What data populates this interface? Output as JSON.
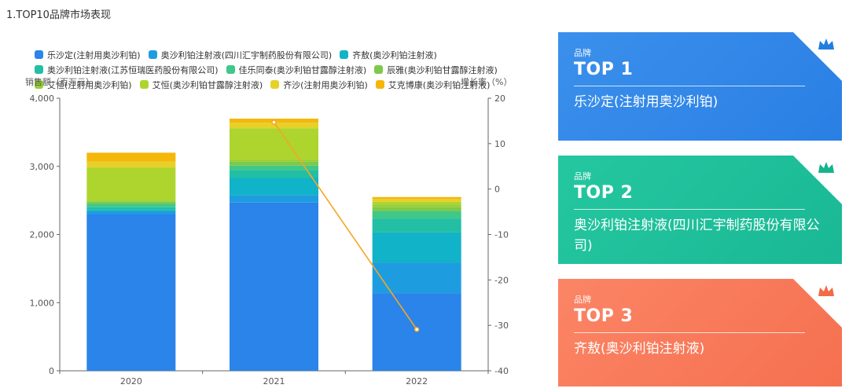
{
  "page": {
    "title": "1.TOP10品牌市场表现"
  },
  "chart_data": {
    "type": "bar",
    "stacked": true,
    "categories": [
      "2020",
      "2021",
      "2022"
    ],
    "ylabel": "销售额（百万元）",
    "y2label": "增长率（%）",
    "ylim": [
      0,
      4000
    ],
    "y2lim": [
      -40,
      20
    ],
    "yticks": [
      "0",
      "1,000",
      "2,000",
      "3,000",
      "4,000"
    ],
    "y2ticks": [
      "-40",
      "-30",
      "-20",
      "-10",
      "0",
      "10",
      "20"
    ],
    "grid": false,
    "legend_position": "top",
    "series": [
      {
        "name": "乐沙定(注射用奥沙利铂)",
        "color": "#2a84ea",
        "values": [
          2300,
          2470,
          1140
        ]
      },
      {
        "name": "奥沙利铂注射液(四川汇宇制药股份有限公司)",
        "color": "#1d9de0",
        "values": [
          40,
          110,
          450
        ]
      },
      {
        "name": "齐敖(奥沙利铂注射液)",
        "color": "#10b3c7",
        "values": [
          20,
          250,
          440
        ]
      },
      {
        "name": "奥沙利铂注射液(江苏恒瑞医药股份有限公司)",
        "color": "#22bfa5",
        "values": [
          40,
          110,
          200
        ]
      },
      {
        "name": "佳乐同泰(奥沙利铂甘露醇注射液)",
        "color": "#3fc88a",
        "values": [
          50,
          70,
          110
        ]
      },
      {
        "name": "辰雅(奥沙利铂甘露醇注射液)",
        "color": "#7ec94a",
        "values": [
          30,
          60,
          60
        ]
      },
      {
        "name": "艾恒(注射用奥沙利铂)",
        "color": "#96cf36",
        "values": [
          20,
          30,
          40
        ]
      },
      {
        "name": "艾恒(奥沙利铂甘露醇注射液)",
        "color": "#aed52e",
        "values": [
          480,
          460,
          40
        ]
      },
      {
        "name": "齐沙(注射用奥沙利铂)",
        "color": "#e6d12b",
        "values": [
          90,
          80,
          40
        ]
      },
      {
        "name": "艾克博康(奥沙利铂注射液)",
        "color": "#f5b70a",
        "values": [
          130,
          60,
          30
        ]
      }
    ],
    "growth_line": {
      "color": "#f5a623",
      "categories": [
        "2021",
        "2022"
      ],
      "values": [
        14.7,
        -30.9
      ]
    }
  },
  "cards": [
    {
      "kicker": "品牌",
      "rank": "TOP 1",
      "name": "乐沙定(注射用奥沙利铂)",
      "crown_color": "#1f7fe0"
    },
    {
      "kicker": "品牌",
      "rank": "TOP 2",
      "name": "奥沙利铂注射液(四川汇宇制药股份有限公司)",
      "crown_color": "#14b48c"
    },
    {
      "kicker": "品牌",
      "rank": "TOP 3",
      "name": "齐敖(奥沙利铂注射液)",
      "crown_color": "#f36a46"
    }
  ]
}
